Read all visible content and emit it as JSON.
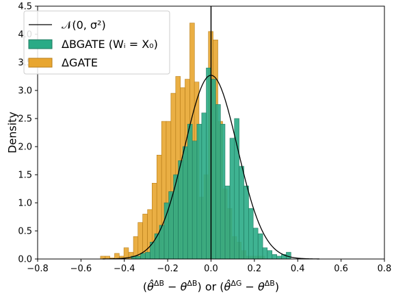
{
  "chart_data": {
    "type": "bar",
    "xlabel": "(θ̂^ΔB − θ^ΔB) or (θ̂^ΔG − θ^ΔB)",
    "ylabel": "Density",
    "xlim": [
      -0.8,
      0.8
    ],
    "ylim": [
      0,
      4.5
    ],
    "x_ticks": [
      -0.8,
      -0.6,
      -0.4,
      -0.2,
      0.0,
      0.2,
      0.4,
      0.6,
      0.8
    ],
    "x_tick_labels": [
      "−0.8",
      "−0.6",
      "−0.4",
      "−0.2",
      "0.0",
      "0.2",
      "0.4",
      "0.6",
      "0.8"
    ],
    "y_ticks": [
      0.0,
      0.5,
      1.0,
      1.5,
      2.0,
      2.5,
      3.0,
      3.5,
      4.0,
      4.5
    ],
    "y_tick_labels": [
      "0.0",
      "0.5",
      "1.0",
      "1.5",
      "2.0",
      "2.5",
      "3.0",
      "3.5",
      "4.0",
      "4.5"
    ],
    "grid": false,
    "legend_position": "top-left",
    "vertical_line_x": 0.0,
    "bin_width": 0.0216,
    "series": [
      {
        "name": "ΔBGATE (W_i = X_0)",
        "legend_label": "ΔBGATE (Wᵢ = X₀)",
        "kind": "histogram",
        "color": "#2aab86",
        "edge_color": "#1e7a5f",
        "bin_starts": [
          -0.368,
          -0.346,
          -0.325,
          -0.303,
          -0.281,
          -0.26,
          -0.238,
          -0.216,
          -0.195,
          -0.173,
          -0.151,
          -0.13,
          -0.108,
          -0.086,
          -0.065,
          -0.043,
          -0.022,
          0.0,
          0.022,
          0.043,
          0.065,
          0.087,
          0.108,
          0.13,
          0.152,
          0.173,
          0.195,
          0.217,
          0.238,
          0.26,
          0.282,
          0.303,
          0.325,
          0.347
        ],
        "values": [
          0.05,
          0.05,
          0.1,
          0.12,
          0.3,
          0.45,
          0.6,
          1.0,
          1.2,
          1.5,
          1.75,
          2.0,
          2.4,
          2.1,
          2.4,
          2.6,
          3.4,
          3.2,
          2.75,
          2.4,
          1.3,
          2.15,
          2.5,
          1.65,
          1.3,
          0.9,
          0.55,
          0.45,
          0.2,
          0.15,
          0.08,
          0.05,
          0.08,
          0.12
        ]
      },
      {
        "name": "ΔGATE",
        "legend_label": "ΔGATE",
        "kind": "histogram",
        "color": "#e8a630",
        "edge_color": "#b77e1b",
        "bin_starts": [
          -0.51,
          -0.488,
          -0.467,
          -0.445,
          -0.423,
          -0.402,
          -0.38,
          -0.358,
          -0.337,
          -0.315,
          -0.293,
          -0.272,
          -0.25,
          -0.228,
          -0.207,
          -0.185,
          -0.163,
          -0.142,
          -0.12,
          -0.098,
          -0.077,
          -0.055,
          -0.033,
          -0.012,
          0.01,
          0.032,
          0.053,
          0.075,
          0.097,
          0.118,
          0.14,
          0.162,
          0.183,
          0.205,
          0.227
        ],
        "values": [
          0.05,
          0.05,
          0.02,
          0.1,
          0.05,
          0.2,
          0.12,
          0.4,
          0.65,
          0.8,
          0.88,
          1.35,
          1.85,
          2.45,
          2.45,
          2.95,
          3.25,
          3.05,
          3.2,
          4.2,
          3.15,
          1.1,
          1.5,
          4.05,
          3.9,
          2.45,
          1.25,
          0.9,
          0.4,
          0.3,
          0.15,
          0.05,
          0.05,
          0.05,
          0.05
        ]
      },
      {
        "name": "N(0, σ²)",
        "legend_label": "𝒩(0, σ²)",
        "kind": "normal_curve",
        "color": "#000000",
        "mean": 0.0,
        "sigma": 0.122
      }
    ]
  }
}
